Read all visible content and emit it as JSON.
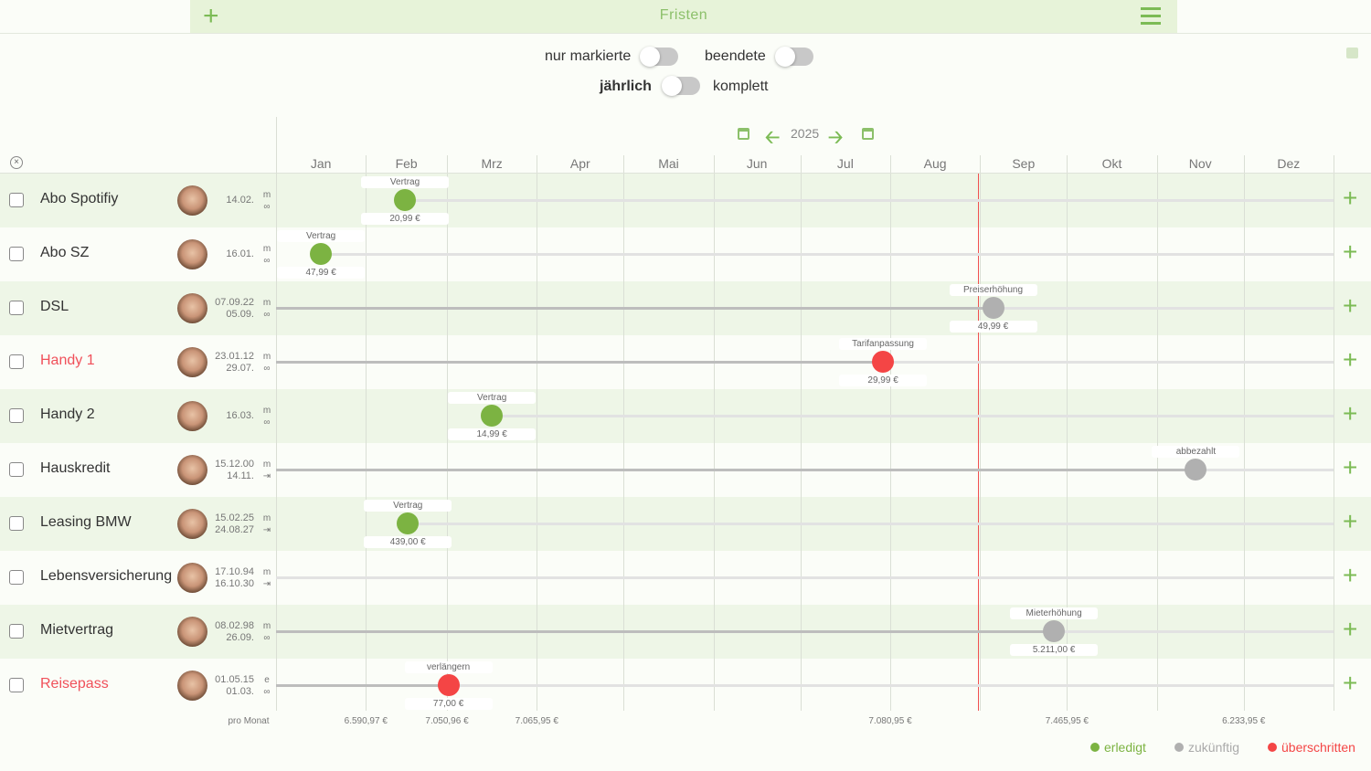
{
  "header": {
    "title": "Fristen",
    "add_icon": "plus-icon",
    "menu_icon": "hamburger-icon"
  },
  "filters": {
    "only_marked": "nur markierte",
    "finished": "beendete",
    "yearly": "jährlich",
    "complete": "komplett"
  },
  "timeline": {
    "year": "2025",
    "months": [
      "Jan",
      "Feb",
      "Mrz",
      "Apr",
      "Mai",
      "Jun",
      "Jul",
      "Aug",
      "Sep",
      "Okt",
      "Nov",
      "Dez"
    ]
  },
  "colors": {
    "done": "#7cb342",
    "future": "#b0b0b0",
    "overdue": "#f44545",
    "accent": "#7cbb55"
  },
  "rows": [
    {
      "name": "Abo Spotifiy",
      "d1": "14.02.",
      "d2": "",
      "p1": "m",
      "p2": "∞",
      "event": "Vertrag",
      "amount": "20,99 €",
      "month": 2,
      "day": 14,
      "status": "done",
      "past": false,
      "warn": false
    },
    {
      "name": "Abo SZ",
      "d1": "16.01.",
      "d2": "",
      "p1": "m",
      "p2": "∞",
      "event": "Vertrag",
      "amount": "47,99 €",
      "month": 1,
      "day": 16,
      "status": "done",
      "past": false,
      "warn": false
    },
    {
      "name": "DSL",
      "d1": "07.09.22",
      "d2": "05.09.",
      "p1": "m",
      "p2": "∞",
      "event": "Preiserhöhung",
      "amount": "49,99 €",
      "month": 9,
      "day": 5,
      "status": "future",
      "past": true,
      "warn": false
    },
    {
      "name": "Handy 1",
      "d1": "23.01.12",
      "d2": "29.07.",
      "p1": "m",
      "p2": "∞",
      "event": "Tarifanpassung",
      "amount": "29,99 €",
      "month": 7,
      "day": 29,
      "status": "overdue",
      "past": true,
      "warn": true
    },
    {
      "name": "Handy 2",
      "d1": "16.03.",
      "d2": "",
      "p1": "m",
      "p2": "∞",
      "event": "Vertrag",
      "amount": "14,99 €",
      "month": 3,
      "day": 16,
      "status": "done",
      "past": false,
      "warn": false
    },
    {
      "name": "Hauskredit",
      "d1": "15.12.00",
      "d2": "14.11.",
      "p1": "m",
      "p2": "⇥",
      "event": "abbezahlt",
      "amount": "",
      "month": 11,
      "day": 14,
      "status": "future",
      "past": true,
      "warn": false
    },
    {
      "name": "Leasing BMW",
      "d1": "15.02.25",
      "d2": "24.08.27",
      "p1": "m",
      "p2": "⇥",
      "event": "Vertrag",
      "amount": "439,00 €",
      "month": 2,
      "day": 15,
      "status": "done",
      "past": false,
      "warn": false
    },
    {
      "name": "Lebensversicherung",
      "d1": "17.10.94",
      "d2": "16.10.30",
      "p1": "m",
      "p2": "⇥",
      "event": "",
      "amount": "",
      "month": 0,
      "day": 0,
      "status": "none",
      "past": false,
      "warn": false
    },
    {
      "name": "Mietvertrag",
      "d1": "08.02.98",
      "d2": "26.09.",
      "p1": "m",
      "p2": "∞",
      "event": "Mieterhöhung",
      "amount": "5.211,00 €",
      "month": 9,
      "day": 26,
      "status": "future",
      "past": true,
      "warn": false
    },
    {
      "name": "Reisepass",
      "d1": "01.05.15",
      "d2": "01.03.",
      "p1": "e",
      "p2": "∞",
      "event": "verlängern",
      "amount": "77,00 €",
      "month": 3,
      "day": 1,
      "status": "overdue",
      "past": true,
      "warn": true
    }
  ],
  "footer": {
    "per_month": "pro Monat",
    "sums": [
      {
        "month": 2,
        "value": "6.590,97 €"
      },
      {
        "month": 3,
        "value": "7.050,96 €"
      },
      {
        "month": 4,
        "value": "7.065,95 €"
      },
      {
        "month": 8,
        "value": "7.080,95 €"
      },
      {
        "month": 10,
        "value": "7.465,95 €"
      },
      {
        "month": 12,
        "value": "6.233,95 €"
      }
    ]
  },
  "legend": {
    "done": "erledigt",
    "future": "zukünftig",
    "overdue": "überschritten"
  }
}
